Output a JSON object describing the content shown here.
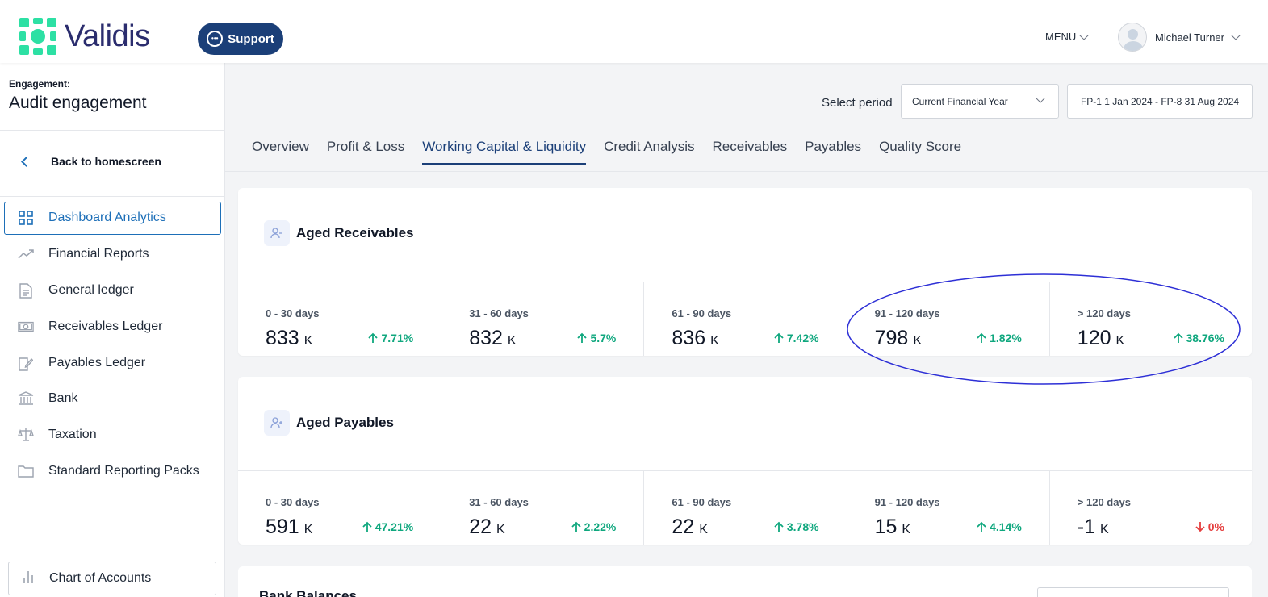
{
  "brand": {
    "name": "Validis",
    "accent": "#1b3f78",
    "logo_color": "#2de0a4"
  },
  "header": {
    "support_label": "Support",
    "menu_label": "MENU",
    "user_name": "Michael Turner"
  },
  "sidebar": {
    "engagement_label": "Engagement:",
    "engagement_name": "Audit engagement",
    "back_label": "Back to homescreen",
    "items": [
      {
        "label": "Dashboard Analytics",
        "icon": "grid-icon",
        "active": true
      },
      {
        "label": "Financial Reports",
        "icon": "trend-icon"
      },
      {
        "label": "General ledger",
        "icon": "document-icon"
      },
      {
        "label": "Receivables Ledger",
        "icon": "cash-icon"
      },
      {
        "label": "Payables Ledger",
        "icon": "edit-document-icon"
      },
      {
        "label": "Bank",
        "icon": "bank-icon"
      },
      {
        "label": "Taxation",
        "icon": "scales-icon"
      },
      {
        "label": "Standard Reporting Packs",
        "icon": "folder-icon"
      }
    ],
    "chart_of_accounts": "Chart of Accounts"
  },
  "period": {
    "label": "Select period",
    "selected": "Current Financial Year",
    "range": "FP-1 1 Jan 2024 - FP-8 31 Aug 2024"
  },
  "tabs": [
    {
      "label": "Overview"
    },
    {
      "label": "Profit & Loss"
    },
    {
      "label": "Working Capital & Liquidity",
      "active": true
    },
    {
      "label": "Credit Analysis"
    },
    {
      "label": "Receivables"
    },
    {
      "label": "Payables"
    },
    {
      "label": "Quality Score"
    }
  ],
  "receivables": {
    "title": "Aged Receivables",
    "buckets": [
      {
        "label": "0 - 30 days",
        "value": "833",
        "unit": "K",
        "change": "7.71%",
        "direction": "up"
      },
      {
        "label": "31 - 60 days",
        "value": "832",
        "unit": "K",
        "change": "5.7%",
        "direction": "up"
      },
      {
        "label": "61 - 90 days",
        "value": "836",
        "unit": "K",
        "change": "7.42%",
        "direction": "up"
      },
      {
        "label": "91 - 120 days",
        "value": "798",
        "unit": "K",
        "change": "1.82%",
        "direction": "up"
      },
      {
        "label": "> 120 days",
        "value": "120",
        "unit": "K",
        "change": "38.76%",
        "direction": "up"
      }
    ]
  },
  "payables": {
    "title": "Aged Payables",
    "buckets": [
      {
        "label": "0 - 30 days",
        "value": "591",
        "unit": "K",
        "change": "47.21%",
        "direction": "up"
      },
      {
        "label": "31 - 60 days",
        "value": "22",
        "unit": "K",
        "change": "2.22%",
        "direction": "up"
      },
      {
        "label": "61 - 90 days",
        "value": "22",
        "unit": "K",
        "change": "3.78%",
        "direction": "up"
      },
      {
        "label": "91 - 120 days",
        "value": "15",
        "unit": "K",
        "change": "4.14%",
        "direction": "up"
      },
      {
        "label": "> 120 days",
        "value": "-1",
        "unit": "K",
        "change": "0%",
        "direction": "down"
      }
    ]
  },
  "bank": {
    "title": "Bank Balances"
  },
  "colors": {
    "up": "#0fa77e",
    "down": "#e53e3e",
    "annotation": "#2d2fd6"
  }
}
